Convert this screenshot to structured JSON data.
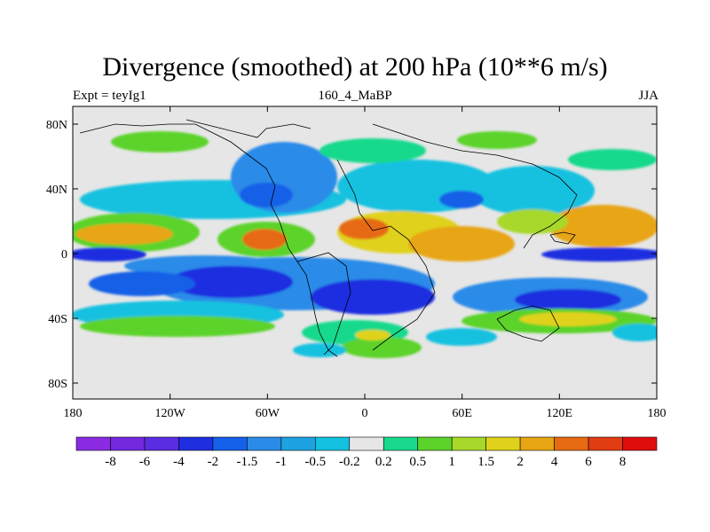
{
  "header": {
    "title": "Divergence (smoothed) at 200 hPa (10**6 m/s)",
    "expt": "Expt = teyIg1",
    "run": "160_4_MaBP",
    "season": "JJA"
  },
  "axes": {
    "lat_ticks": [
      "80N",
      "40N",
      "0",
      "40S",
      "80S"
    ],
    "lon_ticks": [
      "180",
      "120W",
      "60W",
      "0",
      "60E",
      "120E",
      "180"
    ]
  },
  "colorbar": {
    "colors": [
      "#8a2be2",
      "#7428e0",
      "#5a2de0",
      "#1f2fe0",
      "#1560e8",
      "#2a8be8",
      "#1ca3e0",
      "#14c1e0",
      "#e6e6e6",
      "#19d98c",
      "#5bd32a",
      "#a8d82a",
      "#e0d21a",
      "#e8a514",
      "#e66a12",
      "#e23c12",
      "#e00d0d"
    ],
    "labels": [
      "-8",
      "-6",
      "-4",
      "-2",
      "-1.5",
      "-1",
      "-0.5",
      "-0.2",
      "0.2",
      "0.5",
      "1",
      "1.5",
      "2",
      "4",
      "6",
      "8"
    ]
  }
}
